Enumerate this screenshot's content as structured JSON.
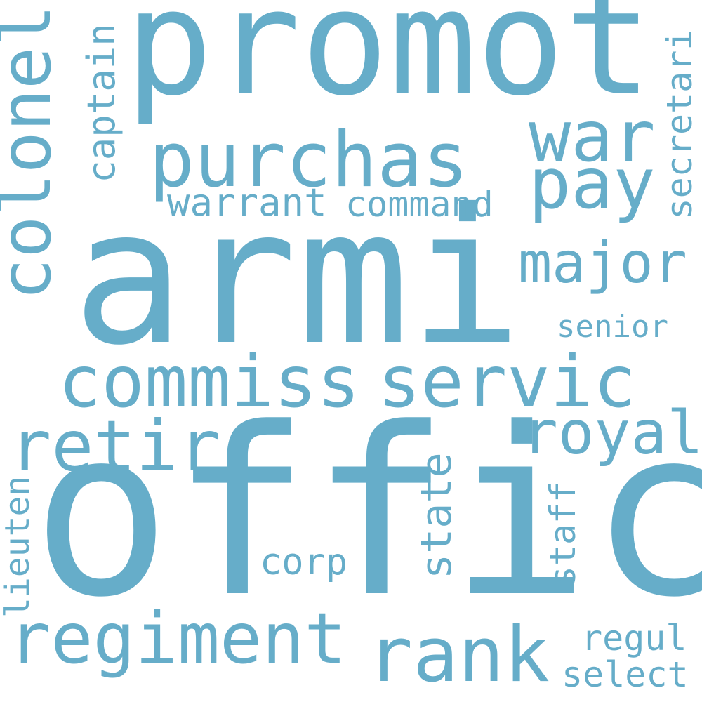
{
  "color": "#66ADC9",
  "background": "#ffffff",
  "words": {
    "offic": "offic",
    "armi": "armi",
    "promot": "promot",
    "purchas": "purchas",
    "commiss": "commiss",
    "servic": "servic",
    "war": "war",
    "pay": "pay",
    "major": "major",
    "colonel": "colonel",
    "captain": "captain",
    "warrant": "warrant",
    "command": "command",
    "secretari": "secretari",
    "senior": "senior",
    "retir": "retir",
    "royal": "royal",
    "regiment": "regiment",
    "rank": "rank",
    "lieuten": "lieuten",
    "state": "state",
    "staff": "staff",
    "corp": "corp",
    "regul": "regul",
    "select": "select"
  }
}
